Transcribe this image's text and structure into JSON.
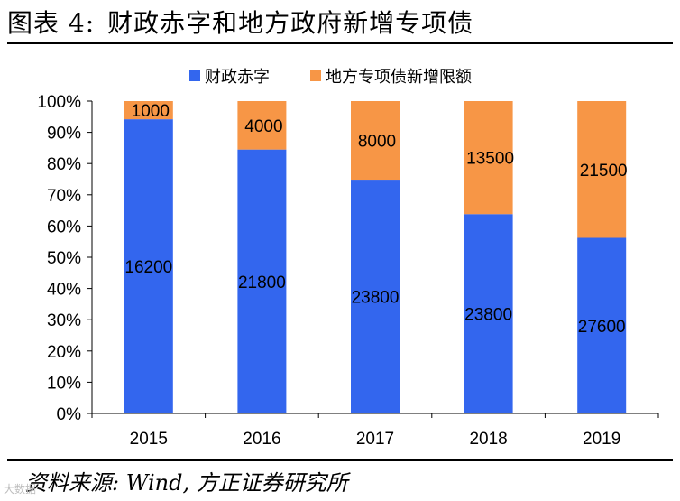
{
  "header": {
    "figure_label": "图表 4:",
    "title": "财政赤字和地方政府新增专项债"
  },
  "footer": {
    "source": "资料来源: Wind, 方正证券研究所",
    "watermark": "大数据"
  },
  "chart_data": {
    "type": "bar",
    "stacked": "percent",
    "title": "",
    "xlabel": "",
    "ylabel": "",
    "ylim": [
      0,
      100
    ],
    "y_ticks": [
      "0%",
      "10%",
      "20%",
      "30%",
      "40%",
      "50%",
      "60%",
      "70%",
      "80%",
      "90%",
      "100%"
    ],
    "categories": [
      "2015",
      "2016",
      "2017",
      "2018",
      "2019"
    ],
    "legend_position": "top",
    "series": [
      {
        "name": "财政赤字",
        "color": "#3366ee",
        "values": [
          16200,
          21800,
          23800,
          23800,
          27600
        ]
      },
      {
        "name": "地方专项债新增限额",
        "color": "#f79646",
        "values": [
          1000,
          4000,
          8000,
          13500,
          21500
        ]
      }
    ]
  }
}
